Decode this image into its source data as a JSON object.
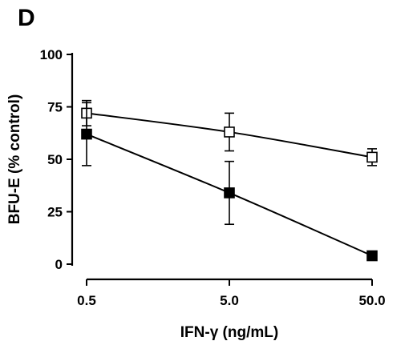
{
  "panel_letter": "D",
  "chart_data": {
    "type": "line",
    "title": "",
    "xlabel": "IFN-γ (ng/mL)",
    "ylabel": "BFU-E (% control)",
    "x_scale": "log",
    "x": [
      0.5,
      5.0,
      50.0
    ],
    "x_tick_labels": [
      "0.5",
      "5.0",
      "50.0"
    ],
    "ylim": [
      0,
      100
    ],
    "y_ticks": [
      0,
      25,
      50,
      75,
      100
    ],
    "grid": false,
    "legend": "none",
    "series": [
      {
        "marker": "open-square",
        "color": "#000000",
        "values": [
          72,
          63,
          51
        ],
        "error": [
          6,
          9,
          4
        ]
      },
      {
        "marker": "filled-square",
        "color": "#000000",
        "values": [
          62,
          34,
          4
        ],
        "error": [
          15,
          15,
          0
        ]
      }
    ]
  }
}
